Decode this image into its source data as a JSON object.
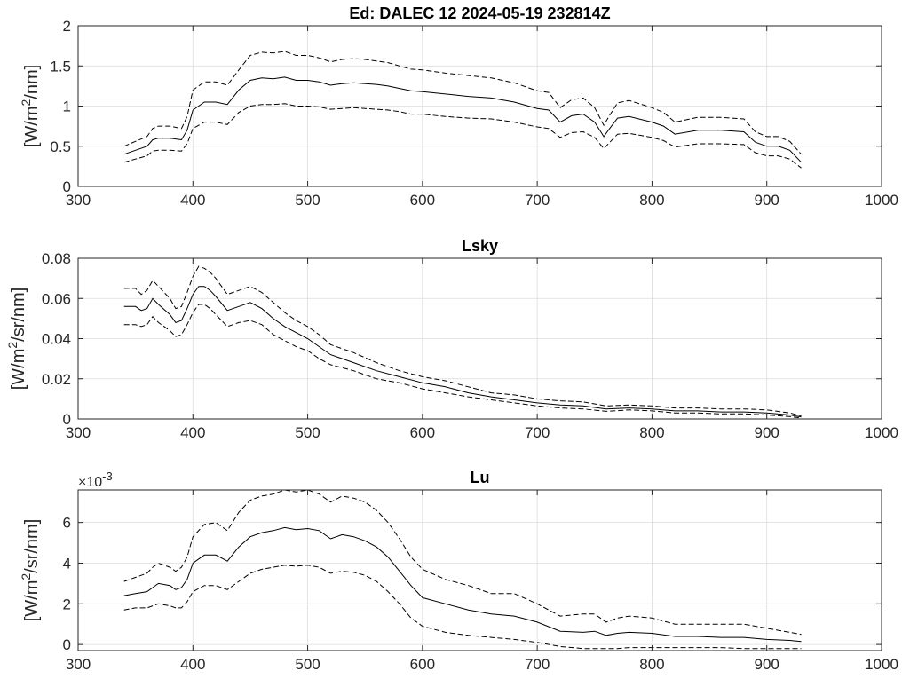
{
  "chart_data": [
    {
      "type": "line",
      "title": "Ed: DALEC 12 2024-05-19 232814Z",
      "xlabel": "",
      "ylabel": "[W/m2/nm]",
      "ylabel_parts": [
        "[W/m",
        "2",
        "/nm]"
      ],
      "xlim": [
        300,
        1000
      ],
      "ylim": [
        0,
        2
      ],
      "xticks": [
        300,
        400,
        500,
        600,
        700,
        800,
        900,
        1000
      ],
      "yticks": [
        0,
        0.5,
        1,
        1.5,
        2
      ],
      "ytick_labels": [
        "0",
        "0.5",
        "1",
        "1.5",
        "2"
      ],
      "grid": true,
      "series": [
        {
          "style": "solid",
          "x": [
            340,
            350,
            360,
            365,
            370,
            380,
            390,
            395,
            400,
            410,
            420,
            430,
            440,
            450,
            460,
            470,
            480,
            490,
            500,
            510,
            520,
            530,
            540,
            550,
            560,
            570,
            580,
            590,
            600,
            620,
            640,
            660,
            680,
            700,
            710,
            720,
            730,
            740,
            750,
            758,
            762,
            770,
            780,
            800,
            810,
            820,
            840,
            860,
            880,
            890,
            900,
            910,
            920,
            930
          ],
          "y": [
            0.4,
            0.45,
            0.5,
            0.58,
            0.6,
            0.6,
            0.58,
            0.7,
            0.95,
            1.05,
            1.05,
            1.02,
            1.2,
            1.32,
            1.35,
            1.34,
            1.36,
            1.32,
            1.32,
            1.3,
            1.26,
            1.28,
            1.29,
            1.28,
            1.27,
            1.25,
            1.22,
            1.19,
            1.18,
            1.15,
            1.12,
            1.1,
            1.05,
            0.97,
            0.95,
            0.8,
            0.88,
            0.9,
            0.8,
            0.62,
            0.7,
            0.85,
            0.87,
            0.8,
            0.75,
            0.65,
            0.7,
            0.7,
            0.68,
            0.55,
            0.5,
            0.5,
            0.45,
            0.3
          ]
        },
        {
          "style": "dashed",
          "x": [
            340,
            350,
            360,
            365,
            370,
            380,
            390,
            395,
            400,
            410,
            420,
            430,
            440,
            450,
            460,
            470,
            480,
            490,
            500,
            510,
            520,
            530,
            540,
            550,
            560,
            570,
            580,
            590,
            600,
            620,
            640,
            660,
            680,
            700,
            710,
            720,
            730,
            740,
            750,
            758,
            762,
            770,
            780,
            800,
            810,
            820,
            840,
            860,
            880,
            890,
            900,
            910,
            920,
            930
          ],
          "y": [
            0.5,
            0.56,
            0.62,
            0.72,
            0.75,
            0.75,
            0.72,
            0.87,
            1.2,
            1.3,
            1.3,
            1.26,
            1.45,
            1.63,
            1.67,
            1.66,
            1.68,
            1.63,
            1.63,
            1.6,
            1.55,
            1.58,
            1.59,
            1.58,
            1.56,
            1.54,
            1.5,
            1.46,
            1.45,
            1.41,
            1.38,
            1.35,
            1.29,
            1.19,
            1.17,
            0.98,
            1.08,
            1.1,
            0.98,
            0.76,
            0.86,
            1.04,
            1.07,
            0.98,
            0.92,
            0.8,
            0.86,
            0.86,
            0.84,
            0.68,
            0.62,
            0.62,
            0.56,
            0.4
          ]
        },
        {
          "style": "dashed",
          "x": [
            340,
            350,
            360,
            365,
            370,
            380,
            390,
            395,
            400,
            410,
            420,
            430,
            440,
            450,
            460,
            470,
            480,
            490,
            500,
            510,
            520,
            530,
            540,
            550,
            560,
            570,
            580,
            590,
            600,
            620,
            640,
            660,
            680,
            700,
            710,
            720,
            730,
            740,
            750,
            758,
            762,
            770,
            780,
            800,
            810,
            820,
            840,
            860,
            880,
            890,
            900,
            910,
            920,
            930
          ],
          "y": [
            0.3,
            0.34,
            0.38,
            0.44,
            0.45,
            0.45,
            0.44,
            0.53,
            0.72,
            0.8,
            0.8,
            0.77,
            0.92,
            1.0,
            1.02,
            1.02,
            1.03,
            1.0,
            1.0,
            0.99,
            0.96,
            0.97,
            0.98,
            0.97,
            0.96,
            0.95,
            0.93,
            0.9,
            0.9,
            0.87,
            0.85,
            0.84,
            0.8,
            0.74,
            0.72,
            0.61,
            0.67,
            0.68,
            0.61,
            0.47,
            0.53,
            0.65,
            0.66,
            0.61,
            0.57,
            0.49,
            0.53,
            0.53,
            0.52,
            0.42,
            0.38,
            0.38,
            0.34,
            0.23
          ]
        }
      ]
    },
    {
      "type": "line",
      "title": "Lsky",
      "xlabel": "",
      "ylabel": "[W/m2/sr/nm]",
      "ylabel_parts": [
        "[W/m",
        "2",
        "/sr/nm]"
      ],
      "xlim": [
        300,
        1000
      ],
      "ylim": [
        0,
        0.08
      ],
      "xticks": [
        300,
        400,
        500,
        600,
        700,
        800,
        900,
        1000
      ],
      "yticks": [
        0,
        0.02,
        0.04,
        0.06,
        0.08
      ],
      "ytick_labels": [
        "0",
        "0.02",
        "0.04",
        "0.06",
        "0.08"
      ],
      "grid": true,
      "series": [
        {
          "style": "solid",
          "x": [
            340,
            350,
            355,
            360,
            365,
            370,
            380,
            385,
            390,
            395,
            400,
            405,
            410,
            415,
            420,
            430,
            440,
            450,
            460,
            470,
            480,
            490,
            500,
            510,
            520,
            540,
            560,
            580,
            600,
            620,
            640,
            660,
            680,
            700,
            720,
            740,
            760,
            780,
            800,
            820,
            840,
            860,
            880,
            900,
            920,
            930
          ],
          "y": [
            0.056,
            0.056,
            0.054,
            0.055,
            0.06,
            0.057,
            0.052,
            0.048,
            0.049,
            0.055,
            0.062,
            0.066,
            0.066,
            0.064,
            0.061,
            0.054,
            0.056,
            0.058,
            0.055,
            0.05,
            0.046,
            0.043,
            0.04,
            0.036,
            0.032,
            0.028,
            0.024,
            0.021,
            0.018,
            0.016,
            0.013,
            0.011,
            0.0095,
            0.008,
            0.007,
            0.0065,
            0.005,
            0.0055,
            0.005,
            0.004,
            0.004,
            0.0035,
            0.0035,
            0.003,
            0.002,
            0.001
          ]
        },
        {
          "style": "dashed",
          "x": [
            340,
            350,
            355,
            360,
            365,
            370,
            380,
            385,
            390,
            395,
            400,
            405,
            410,
            415,
            420,
            430,
            440,
            450,
            460,
            470,
            480,
            490,
            500,
            510,
            520,
            540,
            560,
            580,
            600,
            620,
            640,
            660,
            680,
            700,
            720,
            740,
            760,
            780,
            800,
            820,
            840,
            860,
            880,
            900,
            920,
            930
          ],
          "y": [
            0.065,
            0.065,
            0.062,
            0.064,
            0.069,
            0.066,
            0.06,
            0.055,
            0.056,
            0.063,
            0.071,
            0.076,
            0.075,
            0.073,
            0.07,
            0.062,
            0.064,
            0.066,
            0.063,
            0.058,
            0.053,
            0.049,
            0.046,
            0.042,
            0.037,
            0.033,
            0.028,
            0.024,
            0.021,
            0.019,
            0.016,
            0.013,
            0.012,
            0.01,
            0.009,
            0.0085,
            0.0065,
            0.007,
            0.0065,
            0.0055,
            0.0055,
            0.005,
            0.005,
            0.0045,
            0.003,
            0.0015
          ]
        },
        {
          "style": "dashed",
          "x": [
            340,
            350,
            355,
            360,
            365,
            370,
            380,
            385,
            390,
            395,
            400,
            405,
            410,
            415,
            420,
            430,
            440,
            450,
            460,
            470,
            480,
            490,
            500,
            510,
            520,
            540,
            560,
            580,
            600,
            620,
            640,
            660,
            680,
            700,
            720,
            740,
            760,
            780,
            800,
            820,
            840,
            860,
            880,
            900,
            920,
            930
          ],
          "y": [
            0.047,
            0.047,
            0.046,
            0.047,
            0.051,
            0.048,
            0.044,
            0.041,
            0.042,
            0.047,
            0.053,
            0.057,
            0.057,
            0.055,
            0.052,
            0.046,
            0.048,
            0.049,
            0.047,
            0.042,
            0.039,
            0.036,
            0.034,
            0.03,
            0.027,
            0.024,
            0.02,
            0.018,
            0.015,
            0.013,
            0.011,
            0.0095,
            0.008,
            0.0065,
            0.0055,
            0.005,
            0.0038,
            0.0045,
            0.004,
            0.003,
            0.003,
            0.0025,
            0.0025,
            0.002,
            0.0012,
            0.0005
          ]
        }
      ]
    },
    {
      "type": "line",
      "title": "Lu",
      "xlabel": "",
      "ylabel": "[W/m2/sr/nm]",
      "ylabel_parts": [
        "[W/m",
        "2",
        "/sr/nm]"
      ],
      "exponent_label": [
        "×10",
        "-3"
      ],
      "xlim": [
        300,
        1000
      ],
      "ylim": [
        -0.3,
        7.6
      ],
      "xticks": [
        300,
        400,
        500,
        600,
        700,
        800,
        900,
        1000
      ],
      "yticks": [
        0,
        2,
        4,
        6
      ],
      "ytick_labels": [
        "0",
        "2",
        "4",
        "6"
      ],
      "grid": true,
      "series": [
        {
          "style": "solid",
          "x": [
            340,
            350,
            360,
            365,
            370,
            380,
            385,
            390,
            395,
            400,
            410,
            420,
            430,
            440,
            450,
            460,
            470,
            480,
            490,
            500,
            510,
            520,
            530,
            540,
            550,
            560,
            570,
            580,
            590,
            600,
            620,
            640,
            660,
            680,
            700,
            720,
            740,
            750,
            760,
            770,
            780,
            800,
            820,
            840,
            860,
            880,
            900,
            920,
            930
          ],
          "y": [
            2.4,
            2.5,
            2.6,
            2.8,
            3.0,
            2.9,
            2.7,
            2.8,
            3.2,
            4.0,
            4.4,
            4.4,
            4.1,
            4.8,
            5.3,
            5.5,
            5.6,
            5.75,
            5.65,
            5.7,
            5.6,
            5.2,
            5.4,
            5.3,
            5.1,
            4.8,
            4.3,
            3.6,
            2.9,
            2.3,
            2.0,
            1.7,
            1.5,
            1.4,
            1.1,
            0.65,
            0.6,
            0.65,
            0.45,
            0.55,
            0.6,
            0.55,
            0.4,
            0.4,
            0.35,
            0.35,
            0.25,
            0.2,
            0.15
          ]
        },
        {
          "style": "dashed",
          "x": [
            340,
            350,
            360,
            365,
            370,
            380,
            385,
            390,
            395,
            400,
            410,
            420,
            430,
            440,
            450,
            460,
            470,
            480,
            490,
            500,
            510,
            520,
            530,
            540,
            550,
            560,
            570,
            580,
            590,
            600,
            620,
            640,
            660,
            680,
            700,
            720,
            740,
            750,
            760,
            770,
            780,
            800,
            820,
            840,
            860,
            880,
            900,
            920,
            930
          ],
          "y": [
            3.1,
            3.3,
            3.5,
            3.8,
            4.0,
            3.8,
            3.6,
            3.8,
            4.3,
            5.3,
            5.9,
            6.0,
            5.6,
            6.5,
            7.1,
            7.3,
            7.4,
            7.6,
            7.5,
            7.6,
            7.4,
            7.0,
            7.3,
            7.2,
            7.0,
            6.6,
            6.0,
            5.2,
            4.3,
            3.7,
            3.2,
            2.9,
            2.5,
            2.5,
            2.0,
            1.4,
            1.5,
            1.5,
            1.1,
            1.3,
            1.4,
            1.3,
            1.0,
            1.0,
            1.0,
            1.0,
            0.8,
            0.6,
            0.5
          ]
        },
        {
          "style": "dashed",
          "x": [
            340,
            350,
            360,
            365,
            370,
            380,
            385,
            390,
            395,
            400,
            410,
            420,
            430,
            440,
            450,
            460,
            470,
            480,
            490,
            500,
            510,
            520,
            530,
            540,
            550,
            560,
            570,
            580,
            590,
            600,
            620,
            640,
            660,
            680,
            700,
            720,
            740,
            750,
            760,
            770,
            780,
            800,
            820,
            840,
            860,
            880,
            900,
            920,
            930
          ],
          "y": [
            1.7,
            1.8,
            1.8,
            1.9,
            2.0,
            1.9,
            1.8,
            1.8,
            2.1,
            2.6,
            2.9,
            2.9,
            2.7,
            3.1,
            3.5,
            3.7,
            3.8,
            3.9,
            3.85,
            3.9,
            3.8,
            3.5,
            3.6,
            3.55,
            3.4,
            3.1,
            2.6,
            2.0,
            1.3,
            0.9,
            0.6,
            0.45,
            0.35,
            0.25,
            0.1,
            -0.1,
            -0.2,
            -0.2,
            -0.2,
            -0.2,
            -0.15,
            -0.15,
            -0.15,
            -0.15,
            -0.15,
            -0.2,
            -0.2,
            -0.2,
            -0.2
          ]
        }
      ]
    }
  ]
}
